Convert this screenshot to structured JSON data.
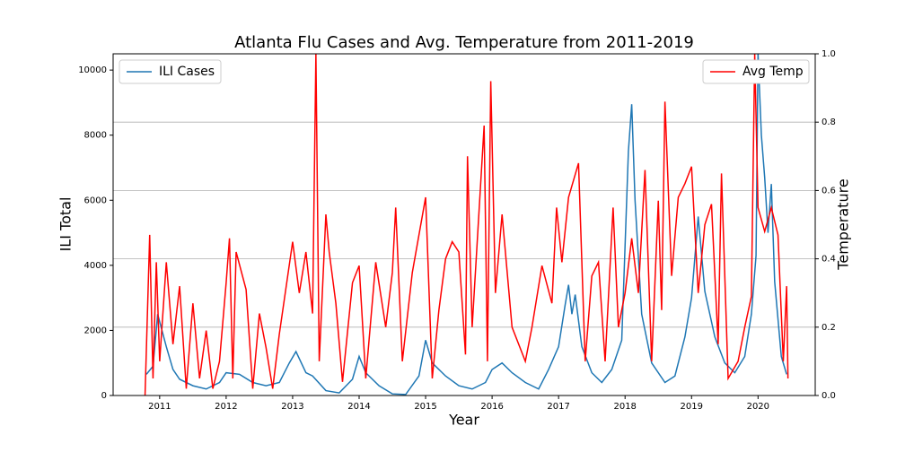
{
  "chart_data": {
    "type": "line",
    "title": "Atlanta Flu Cases and Avg. Temperature from 2011-2019",
    "x_label": "Year",
    "y_label": "ILI Total",
    "y2_label": "Temperature",
    "xlim": [
      2010.3,
      2020.86
    ],
    "xticks": [
      2011,
      2012,
      2013,
      2014,
      2015,
      2016,
      2017,
      2018,
      2019,
      2020
    ],
    "ylim": [
      0,
      10500
    ],
    "yticks": [
      0,
      2000,
      4000,
      6000,
      8000,
      10000
    ],
    "y2lim": [
      0,
      1
    ],
    "y2ticks": [
      {
        "value": 0,
        "label": "0.0"
      },
      0.2,
      0.4,
      0.6,
      0.8,
      {
        "value": 1,
        "label": "1.0"
      }
    ],
    "grid": "y2",
    "series": [
      {
        "name": "ILI Cases",
        "color": "#1f77b4",
        "legend_loc": "upper left",
        "x": [
          2010.8,
          2010.9,
          2010.97,
          2011.1,
          2011.2,
          2011.3,
          2011.5,
          2011.7,
          2011.9,
          2012.0,
          2012.2,
          2012.4,
          2012.6,
          2012.8,
          2012.95,
          2013.05,
          2013.2,
          2013.3,
          2013.5,
          2013.7,
          2013.9,
          2014.0,
          2014.1,
          2014.3,
          2014.5,
          2014.7,
          2014.9,
          2015.0,
          2015.1,
          2015.3,
          2015.5,
          2015.7,
          2015.9,
          2016.0,
          2016.15,
          2016.3,
          2016.5,
          2016.7,
          2016.85,
          2017.0,
          2017.1,
          2017.15,
          2017.2,
          2017.25,
          2017.35,
          2017.5,
          2017.65,
          2017.8,
          2017.95,
          2018.05,
          2018.1,
          2018.15,
          2018.25,
          2018.4,
          2018.6,
          2018.75,
          2018.9,
          2019.0,
          2019.1,
          2019.2,
          2019.35,
          2019.5,
          2019.65,
          2019.8,
          2019.9,
          2019.97,
          2020.0,
          2020.05,
          2020.1,
          2020.15,
          2020.2,
          2020.25,
          2020.35,
          2020.43
        ],
        "values": [
          650,
          900,
          2500,
          1500,
          800,
          500,
          300,
          200,
          400,
          700,
          650,
          400,
          300,
          400,
          1000,
          1350,
          700,
          600,
          150,
          80,
          500,
          1200,
          700,
          300,
          50,
          30,
          600,
          1700,
          1000,
          600,
          300,
          200,
          400,
          800,
          1000,
          700,
          400,
          200,
          800,
          1500,
          2800,
          3400,
          2500,
          3100,
          1500,
          700,
          400,
          800,
          1700,
          7500,
          8950,
          6000,
          2500,
          1000,
          400,
          600,
          1800,
          3000,
          5500,
          3200,
          1800,
          1000,
          700,
          1200,
          2500,
          4300,
          10500,
          8000,
          6700,
          5000,
          6500,
          3500,
          1200,
          650
        ]
      },
      {
        "name": "Avg Temp",
        "color": "#ff0000",
        "axis": "y2",
        "legend_loc": "upper right",
        "x": [
          2010.78,
          2010.85,
          2010.9,
          2010.95,
          2011.0,
          2011.1,
          2011.2,
          2011.3,
          2011.4,
          2011.5,
          2011.6,
          2011.7,
          2011.8,
          2011.9,
          2012.0,
          2012.05,
          2012.1,
          2012.15,
          2012.3,
          2012.4,
          2012.5,
          2012.6,
          2012.7,
          2012.8,
          2013.0,
          2013.1,
          2013.2,
          2013.3,
          2013.35,
          2013.4,
          2013.5,
          2013.55,
          2013.65,
          2013.75,
          2013.9,
          2014.0,
          2014.1,
          2014.25,
          2014.4,
          2014.5,
          2014.55,
          2014.65,
          2014.8,
          2015.0,
          2015.1,
          2015.2,
          2015.3,
          2015.4,
          2015.5,
          2015.6,
          2015.63,
          2015.7,
          2015.88,
          2015.93,
          2015.98,
          2016.05,
          2016.15,
          2016.3,
          2016.5,
          2016.6,
          2016.75,
          2016.9,
          2016.97,
          2017.05,
          2017.15,
          2017.3,
          2017.4,
          2017.5,
          2017.6,
          2017.7,
          2017.82,
          2017.9,
          2018.0,
          2018.1,
          2018.2,
          2018.3,
          2018.4,
          2018.5,
          2018.55,
          2018.6,
          2018.7,
          2018.8,
          2018.9,
          2019.0,
          2019.1,
          2019.2,
          2019.3,
          2019.4,
          2019.45,
          2019.55,
          2019.7,
          2019.8,
          2019.9,
          2019.95,
          2020.0,
          2020.1,
          2020.2,
          2020.3,
          2020.38,
          2020.43,
          2020.45
        ],
        "values": [
          0,
          0.47,
          0.05,
          0.39,
          0.1,
          0.39,
          0.15,
          0.32,
          0.02,
          0.27,
          0.05,
          0.19,
          0.02,
          0.1,
          0.33,
          0.46,
          0.05,
          0.42,
          0.31,
          0.02,
          0.24,
          0.14,
          0.02,
          0.18,
          0.45,
          0.3,
          0.42,
          0.24,
          1.0,
          0.1,
          0.53,
          0.42,
          0.27,
          0.04,
          0.33,
          0.38,
          0.05,
          0.39,
          0.2,
          0.36,
          0.55,
          0.1,
          0.36,
          0.58,
          0.05,
          0.25,
          0.4,
          0.45,
          0.42,
          0.12,
          0.7,
          0.2,
          0.79,
          0.1,
          0.92,
          0.3,
          0.53,
          0.2,
          0.1,
          0.2,
          0.38,
          0.27,
          0.55,
          0.39,
          0.58,
          0.68,
          0.1,
          0.35,
          0.39,
          0.1,
          0.55,
          0.2,
          0.3,
          0.46,
          0.3,
          0.66,
          0.1,
          0.57,
          0.25,
          0.86,
          0.35,
          0.58,
          0.62,
          0.67,
          0.3,
          0.5,
          0.56,
          0.15,
          0.65,
          0.05,
          0.1,
          0.2,
          0.29,
          1.0,
          0.55,
          0.48,
          0.55,
          0.47,
          0.1,
          0.32,
          0.05
        ]
      }
    ]
  }
}
